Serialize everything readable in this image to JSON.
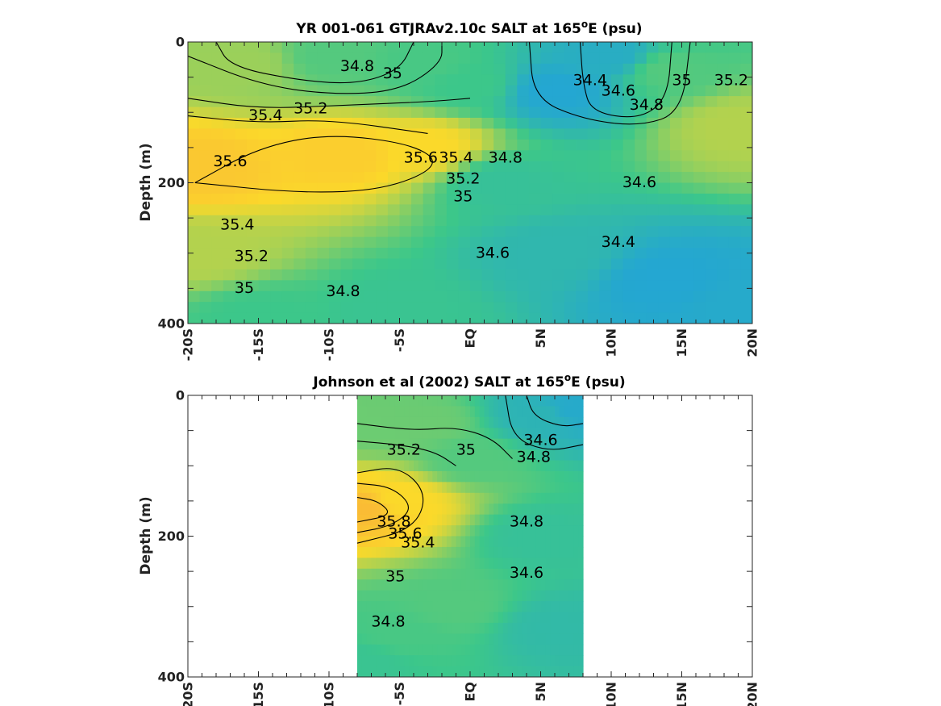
{
  "colors": {
    "low": "#1fa0e0",
    "mid": "#3cc78a",
    "high": "#fbd92a",
    "peak": "#f9ab3c"
  },
  "chart_data": [
    {
      "type": "contour",
      "title": "YR 001-061 GTJRAv2.10c SALT at 165",
      "title_sup": "o",
      "title_suffix": "E (psu)",
      "ylabel": "Depth (m)",
      "xlim": [
        -20,
        20
      ],
      "ylim": [
        0,
        400
      ],
      "xticks": [
        -20,
        -15,
        -10,
        -5,
        0,
        5,
        10,
        15,
        20
      ],
      "xtick_labels": [
        "-20S",
        "-15S",
        "-10S",
        "-5S",
        "EQ",
        "5N",
        "10N",
        "15N",
        "20N"
      ],
      "yticks": [
        0,
        200,
        400
      ],
      "ytick_labels": [
        "0",
        "200",
        "400"
      ],
      "data_xrange": [
        -20,
        20
      ],
      "field_points": [
        {
          "lat": -19,
          "depth": 180,
          "value": 35.75
        },
        {
          "lat": -9,
          "depth": 160,
          "value": 35.7
        },
        {
          "lat": -3,
          "depth": 150,
          "value": 35.6
        },
        {
          "lat": -16,
          "depth": 30,
          "value": 35.2
        },
        {
          "lat": -10,
          "depth": 20,
          "value": 34.9
        },
        {
          "lat": -3,
          "depth": 30,
          "value": 34.85
        },
        {
          "lat": 0,
          "depth": 60,
          "value": 34.8
        },
        {
          "lat": 6,
          "depth": 70,
          "value": 34.3
        },
        {
          "lat": 10,
          "depth": 20,
          "value": 34.4
        },
        {
          "lat": 14,
          "depth": 40,
          "value": 34.9
        },
        {
          "lat": 19,
          "depth": 120,
          "value": 35.3
        },
        {
          "lat": 2,
          "depth": 200,
          "value": 34.7
        },
        {
          "lat": 6,
          "depth": 300,
          "value": 34.55
        },
        {
          "lat": 14,
          "depth": 340,
          "value": 34.3
        },
        {
          "lat": 19,
          "depth": 370,
          "value": 34.35
        },
        {
          "lat": -15,
          "depth": 390,
          "value": 34.8
        },
        {
          "lat": -5,
          "depth": 380,
          "value": 34.75
        },
        {
          "lat": -19,
          "depth": 300,
          "value": 35.3
        }
      ],
      "contours": [
        {
          "value": 34.4,
          "label": "34.4",
          "points": [
            [
              7.8,
              0
            ],
            [
              8.0,
              60
            ],
            [
              8.6,
              100
            ],
            [
              12,
              110
            ],
            [
              14,
              80
            ],
            [
              14.3,
              0
            ]
          ]
        },
        {
          "value": 34.6,
          "label": "34.6",
          "points": [
            [
              4.2,
              0
            ],
            [
              4.5,
              80
            ],
            [
              8,
              110
            ],
            [
              12,
              120
            ],
            [
              15,
              100
            ],
            [
              15.6,
              0
            ]
          ]
        },
        {
          "value": 34.8,
          "label": "34.8",
          "points": [
            [
              -18,
              0
            ],
            [
              -17,
              35
            ],
            [
              -12,
              55
            ],
            [
              -8,
              60
            ],
            [
              -5,
              40
            ],
            [
              -4,
              0
            ]
          ]
        },
        {
          "value": 35.0,
          "label": "35",
          "points": [
            [
              -20,
              20
            ],
            [
              -15,
              60
            ],
            [
              -10,
              75
            ],
            [
              -5,
              70
            ],
            [
              -2,
              30
            ],
            [
              -2,
              0
            ]
          ]
        },
        {
          "value": 35.2,
          "label": "35.2",
          "points": [
            [
              -20,
              80
            ],
            [
              -15,
              95
            ],
            [
              -9,
              90
            ],
            [
              -3,
              85
            ],
            [
              0,
              80
            ]
          ]
        },
        {
          "value": 35.4,
          "label": "35.4",
          "points": [
            [
              -20,
              105
            ],
            [
              -15,
              115
            ],
            [
              -10,
              110
            ],
            [
              -3,
              130
            ]
          ]
        },
        {
          "value": 35.6,
          "label": "35.6",
          "points": [
            [
              -19.5,
              200
            ],
            [
              -15,
              150
            ],
            [
              -10,
              130
            ],
            [
              -4,
              145
            ],
            [
              -2,
              175
            ],
            [
              -6,
              210
            ],
            [
              -12,
              215
            ],
            [
              -19.5,
              200
            ]
          ]
        }
      ],
      "contour_labels": [
        {
          "text": "34.8",
          "lat": -8,
          "depth": 35
        },
        {
          "text": "35",
          "lat": -5.5,
          "depth": 45
        },
        {
          "text": "35.2",
          "lat": -11.3,
          "depth": 95
        },
        {
          "text": "35.4",
          "lat": -14.5,
          "depth": 105
        },
        {
          "text": "35.6",
          "lat": -17,
          "depth": 170
        },
        {
          "text": "35.6",
          "lat": -3.5,
          "depth": 165
        },
        {
          "text": "35.4",
          "lat": -1,
          "depth": 165
        },
        {
          "text": "35.2",
          "lat": -0.5,
          "depth": 195
        },
        {
          "text": "35",
          "lat": -0.5,
          "depth": 220
        },
        {
          "text": "34.8",
          "lat": 2.5,
          "depth": 165
        },
        {
          "text": "34.4",
          "lat": 8.5,
          "depth": 55
        },
        {
          "text": "34.6",
          "lat": 10.5,
          "depth": 70
        },
        {
          "text": "34.8",
          "lat": 12.5,
          "depth": 90
        },
        {
          "text": "35",
          "lat": 15,
          "depth": 55
        },
        {
          "text": "35.2",
          "lat": 18.5,
          "depth": 55
        },
        {
          "text": "34.6",
          "lat": 12,
          "depth": 200
        },
        {
          "text": "34.4",
          "lat": 10.5,
          "depth": 285
        },
        {
          "text": "34.6",
          "lat": 1.6,
          "depth": 300
        },
        {
          "text": "35.4",
          "lat": -16.5,
          "depth": 260
        },
        {
          "text": "35.2",
          "lat": -15.5,
          "depth": 305
        },
        {
          "text": "35",
          "lat": -16,
          "depth": 350
        },
        {
          "text": "34.8",
          "lat": -9,
          "depth": 355
        }
      ]
    },
    {
      "type": "contour",
      "title": "Johnson et al (2002) SALT at 165",
      "title_sup": "o",
      "title_suffix": "E (psu)",
      "ylabel": "Depth (m)",
      "xlim": [
        -20,
        20
      ],
      "ylim": [
        0,
        400
      ],
      "xticks": [
        -20,
        -15,
        -10,
        -5,
        0,
        5,
        10,
        15,
        20
      ],
      "xtick_labels": [
        "-20S",
        "-15S",
        "-10S",
        "-5S",
        "EQ",
        "5N",
        "10N",
        "15N",
        "20N"
      ],
      "yticks": [
        0,
        200,
        400
      ],
      "ytick_labels": [
        "0",
        "200",
        "400"
      ],
      "data_xrange": [
        -8,
        8
      ],
      "field_points": [
        {
          "lat": -7.5,
          "depth": 160,
          "value": 35.85
        },
        {
          "lat": -5,
          "depth": 150,
          "value": 35.6
        },
        {
          "lat": -7,
          "depth": 40,
          "value": 35.0
        },
        {
          "lat": -3,
          "depth": 40,
          "value": 35.0
        },
        {
          "lat": 0,
          "depth": 90,
          "value": 34.9
        },
        {
          "lat": 5,
          "depth": 30,
          "value": 34.5
        },
        {
          "lat": 7.5,
          "depth": 20,
          "value": 34.35
        },
        {
          "lat": 5,
          "depth": 200,
          "value": 34.7
        },
        {
          "lat": 6,
          "depth": 330,
          "value": 34.6
        },
        {
          "lat": -5,
          "depth": 340,
          "value": 34.85
        },
        {
          "lat": -1,
          "depth": 300,
          "value": 34.9
        },
        {
          "lat": -7.5,
          "depth": 380,
          "value": 34.75
        }
      ],
      "contours": [
        {
          "value": 34.6,
          "label": "34.6",
          "points": [
            [
              4,
              0
            ],
            [
              4.5,
              30
            ],
            [
              6.5,
              45
            ],
            [
              8,
              40
            ]
          ]
        },
        {
          "value": 34.8,
          "label": "34.8",
          "points": [
            [
              2.5,
              0
            ],
            [
              3,
              60
            ],
            [
              5.5,
              80
            ],
            [
              8,
              70
            ]
          ]
        },
        {
          "value": 35.0,
          "label": "35",
          "points": [
            [
              -8,
              40
            ],
            [
              -4,
              50
            ],
            [
              -1,
              45
            ],
            [
              1.5,
              60
            ],
            [
              3,
              90
            ]
          ]
        },
        {
          "value": 35.2,
          "label": "35.2",
          "points": [
            [
              -8,
              65
            ],
            [
              -5,
              70
            ],
            [
              -2.5,
              80
            ],
            [
              -1,
              100
            ]
          ]
        },
        {
          "value": 35.4,
          "label": "35.4",
          "points": [
            [
              -8,
              110
            ],
            [
              -5,
              100
            ],
            [
              -3,
              140
            ],
            [
              -4,
              190
            ],
            [
              -8,
              210
            ]
          ]
        },
        {
          "value": 35.6,
          "label": "35.6",
          "points": [
            [
              -8,
              125
            ],
            [
              -5.5,
              130
            ],
            [
              -4,
              160
            ],
            [
              -5.5,
              185
            ],
            [
              -8,
              195
            ]
          ]
        },
        {
          "value": 35.8,
          "label": "35.8",
          "points": [
            [
              -8,
              145
            ],
            [
              -6.5,
              150
            ],
            [
              -5.5,
              170
            ],
            [
              -8,
              180
            ]
          ]
        }
      ],
      "contour_labels": [
        {
          "text": "35.2",
          "lat": -4.7,
          "depth": 78
        },
        {
          "text": "35",
          "lat": -0.3,
          "depth": 78
        },
        {
          "text": "34.6",
          "lat": 5,
          "depth": 64
        },
        {
          "text": "34.8",
          "lat": 4.5,
          "depth": 88
        },
        {
          "text": "35.8",
          "lat": -5.4,
          "depth": 180
        },
        {
          "text": "35.6",
          "lat": -4.6,
          "depth": 197
        },
        {
          "text": "35.4",
          "lat": -3.7,
          "depth": 210
        },
        {
          "text": "34.8",
          "lat": 4,
          "depth": 180
        },
        {
          "text": "34.6",
          "lat": 4,
          "depth": 253
        },
        {
          "text": "35",
          "lat": -5.3,
          "depth": 258
        },
        {
          "text": "34.8",
          "lat": -5.8,
          "depth": 322
        }
      ]
    }
  ]
}
